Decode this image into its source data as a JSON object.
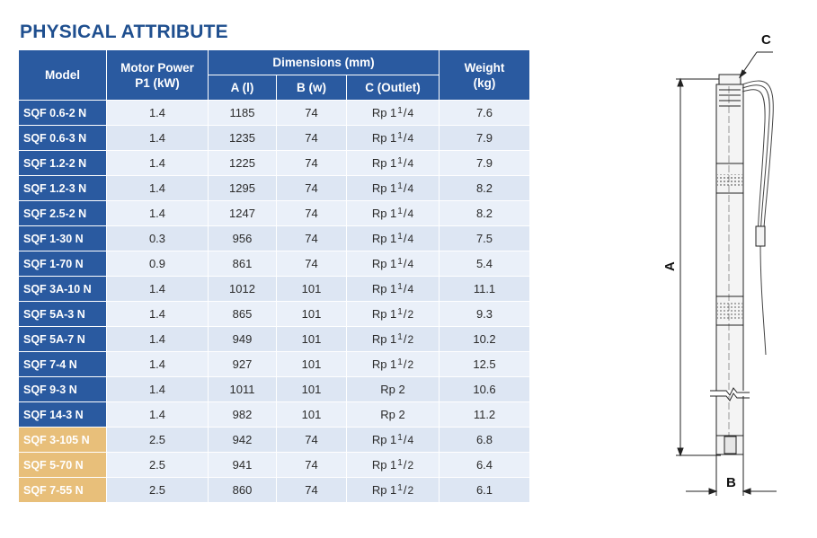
{
  "title": "PHYSICAL ATTRIBUTE",
  "headers": {
    "model": "Model",
    "motor_power_line1": "Motor Power",
    "motor_power_line2": "P1 (kW)",
    "dimensions": "Dimensions (mm)",
    "a": "A (l)",
    "b": "B (w)",
    "c": "C (Outlet)",
    "weight_line1": "Weight",
    "weight_line2": "(kg)"
  },
  "rows": [
    {
      "model": "SQF 0.6-2 N",
      "power": "1.4",
      "a": "1185",
      "b": "74",
      "c_base": "Rp 1",
      "c_num": "1",
      "c_den": "4",
      "weight": "7.6",
      "highlight": false
    },
    {
      "model": "SQF 0.6-3 N",
      "power": "1.4",
      "a": "1235",
      "b": "74",
      "c_base": "Rp 1",
      "c_num": "1",
      "c_den": "4",
      "weight": "7.9",
      "highlight": false
    },
    {
      "model": "SQF 1.2-2 N",
      "power": "1.4",
      "a": "1225",
      "b": "74",
      "c_base": "Rp 1",
      "c_num": "1",
      "c_den": "4",
      "weight": "7.9",
      "highlight": false
    },
    {
      "model": "SQF 1.2-3 N",
      "power": "1.4",
      "a": "1295",
      "b": "74",
      "c_base": "Rp 1",
      "c_num": "1",
      "c_den": "4",
      "weight": "8.2",
      "highlight": false
    },
    {
      "model": "SQF 2.5-2 N",
      "power": "1.4",
      "a": "1247",
      "b": "74",
      "c_base": "Rp 1",
      "c_num": "1",
      "c_den": "4",
      "weight": "8.2",
      "highlight": false
    },
    {
      "model": "SQF 1-30 N",
      "power": "0.3",
      "a": "956",
      "b": "74",
      "c_base": "Rp 1",
      "c_num": "1",
      "c_den": "4",
      "weight": "7.5",
      "highlight": false
    },
    {
      "model": "SQF 1-70 N",
      "power": "0.9",
      "a": "861",
      "b": "74",
      "c_base": "Rp 1",
      "c_num": "1",
      "c_den": "4",
      "weight": "5.4",
      "highlight": false
    },
    {
      "model": "SQF 3A-10 N",
      "power": "1.4",
      "a": "1012",
      "b": "101",
      "c_base": "Rp 1",
      "c_num": "1",
      "c_den": "4",
      "weight": "11.1",
      "highlight": false
    },
    {
      "model": "SQF 5A-3 N",
      "power": "1.4",
      "a": "865",
      "b": "101",
      "c_base": "Rp 1",
      "c_num": "1",
      "c_den": "2",
      "weight": "9.3",
      "highlight": false
    },
    {
      "model": "SQF 5A-7 N",
      "power": "1.4",
      "a": "949",
      "b": "101",
      "c_base": "Rp 1",
      "c_num": "1",
      "c_den": "2",
      "weight": "10.2",
      "highlight": false
    },
    {
      "model": "SQF 7-4 N",
      "power": "1.4",
      "a": "927",
      "b": "101",
      "c_base": "Rp 1",
      "c_num": "1",
      "c_den": "2",
      "weight": "12.5",
      "highlight": false
    },
    {
      "model": "SQF 9-3 N",
      "power": "1.4",
      "a": "1011",
      "b": "101",
      "c_base": "Rp 2",
      "c_num": "",
      "c_den": "",
      "weight": "10.6",
      "highlight": false
    },
    {
      "model": "SQF 14-3 N",
      "power": "1.4",
      "a": "982",
      "b": "101",
      "c_base": "Rp 2",
      "c_num": "",
      "c_den": "",
      "weight": "11.2",
      "highlight": false
    },
    {
      "model": "SQF 3-105 N",
      "power": "2.5",
      "a": "942",
      "b": "74",
      "c_base": "Rp 1",
      "c_num": "1",
      "c_den": "4",
      "weight": "6.8",
      "highlight": true
    },
    {
      "model": "SQF 5-70 N",
      "power": "2.5",
      "a": "941",
      "b": "74",
      "c_base": "Rp 1",
      "c_num": "1",
      "c_den": "2",
      "weight": "6.4",
      "highlight": true
    },
    {
      "model": "SQF 7-55 N",
      "power": "2.5",
      "a": "860",
      "b": "74",
      "c_base": "Rp 1",
      "c_num": "1",
      "c_den": "2",
      "weight": "6.1",
      "highlight": true
    }
  ],
  "diagram": {
    "label_a": "A",
    "label_b": "B",
    "label_c": "C"
  },
  "colors": {
    "header_blue": "#2a5aa0",
    "title_blue": "#1f4f8f",
    "highlight_gold": "#e8bf7a"
  }
}
